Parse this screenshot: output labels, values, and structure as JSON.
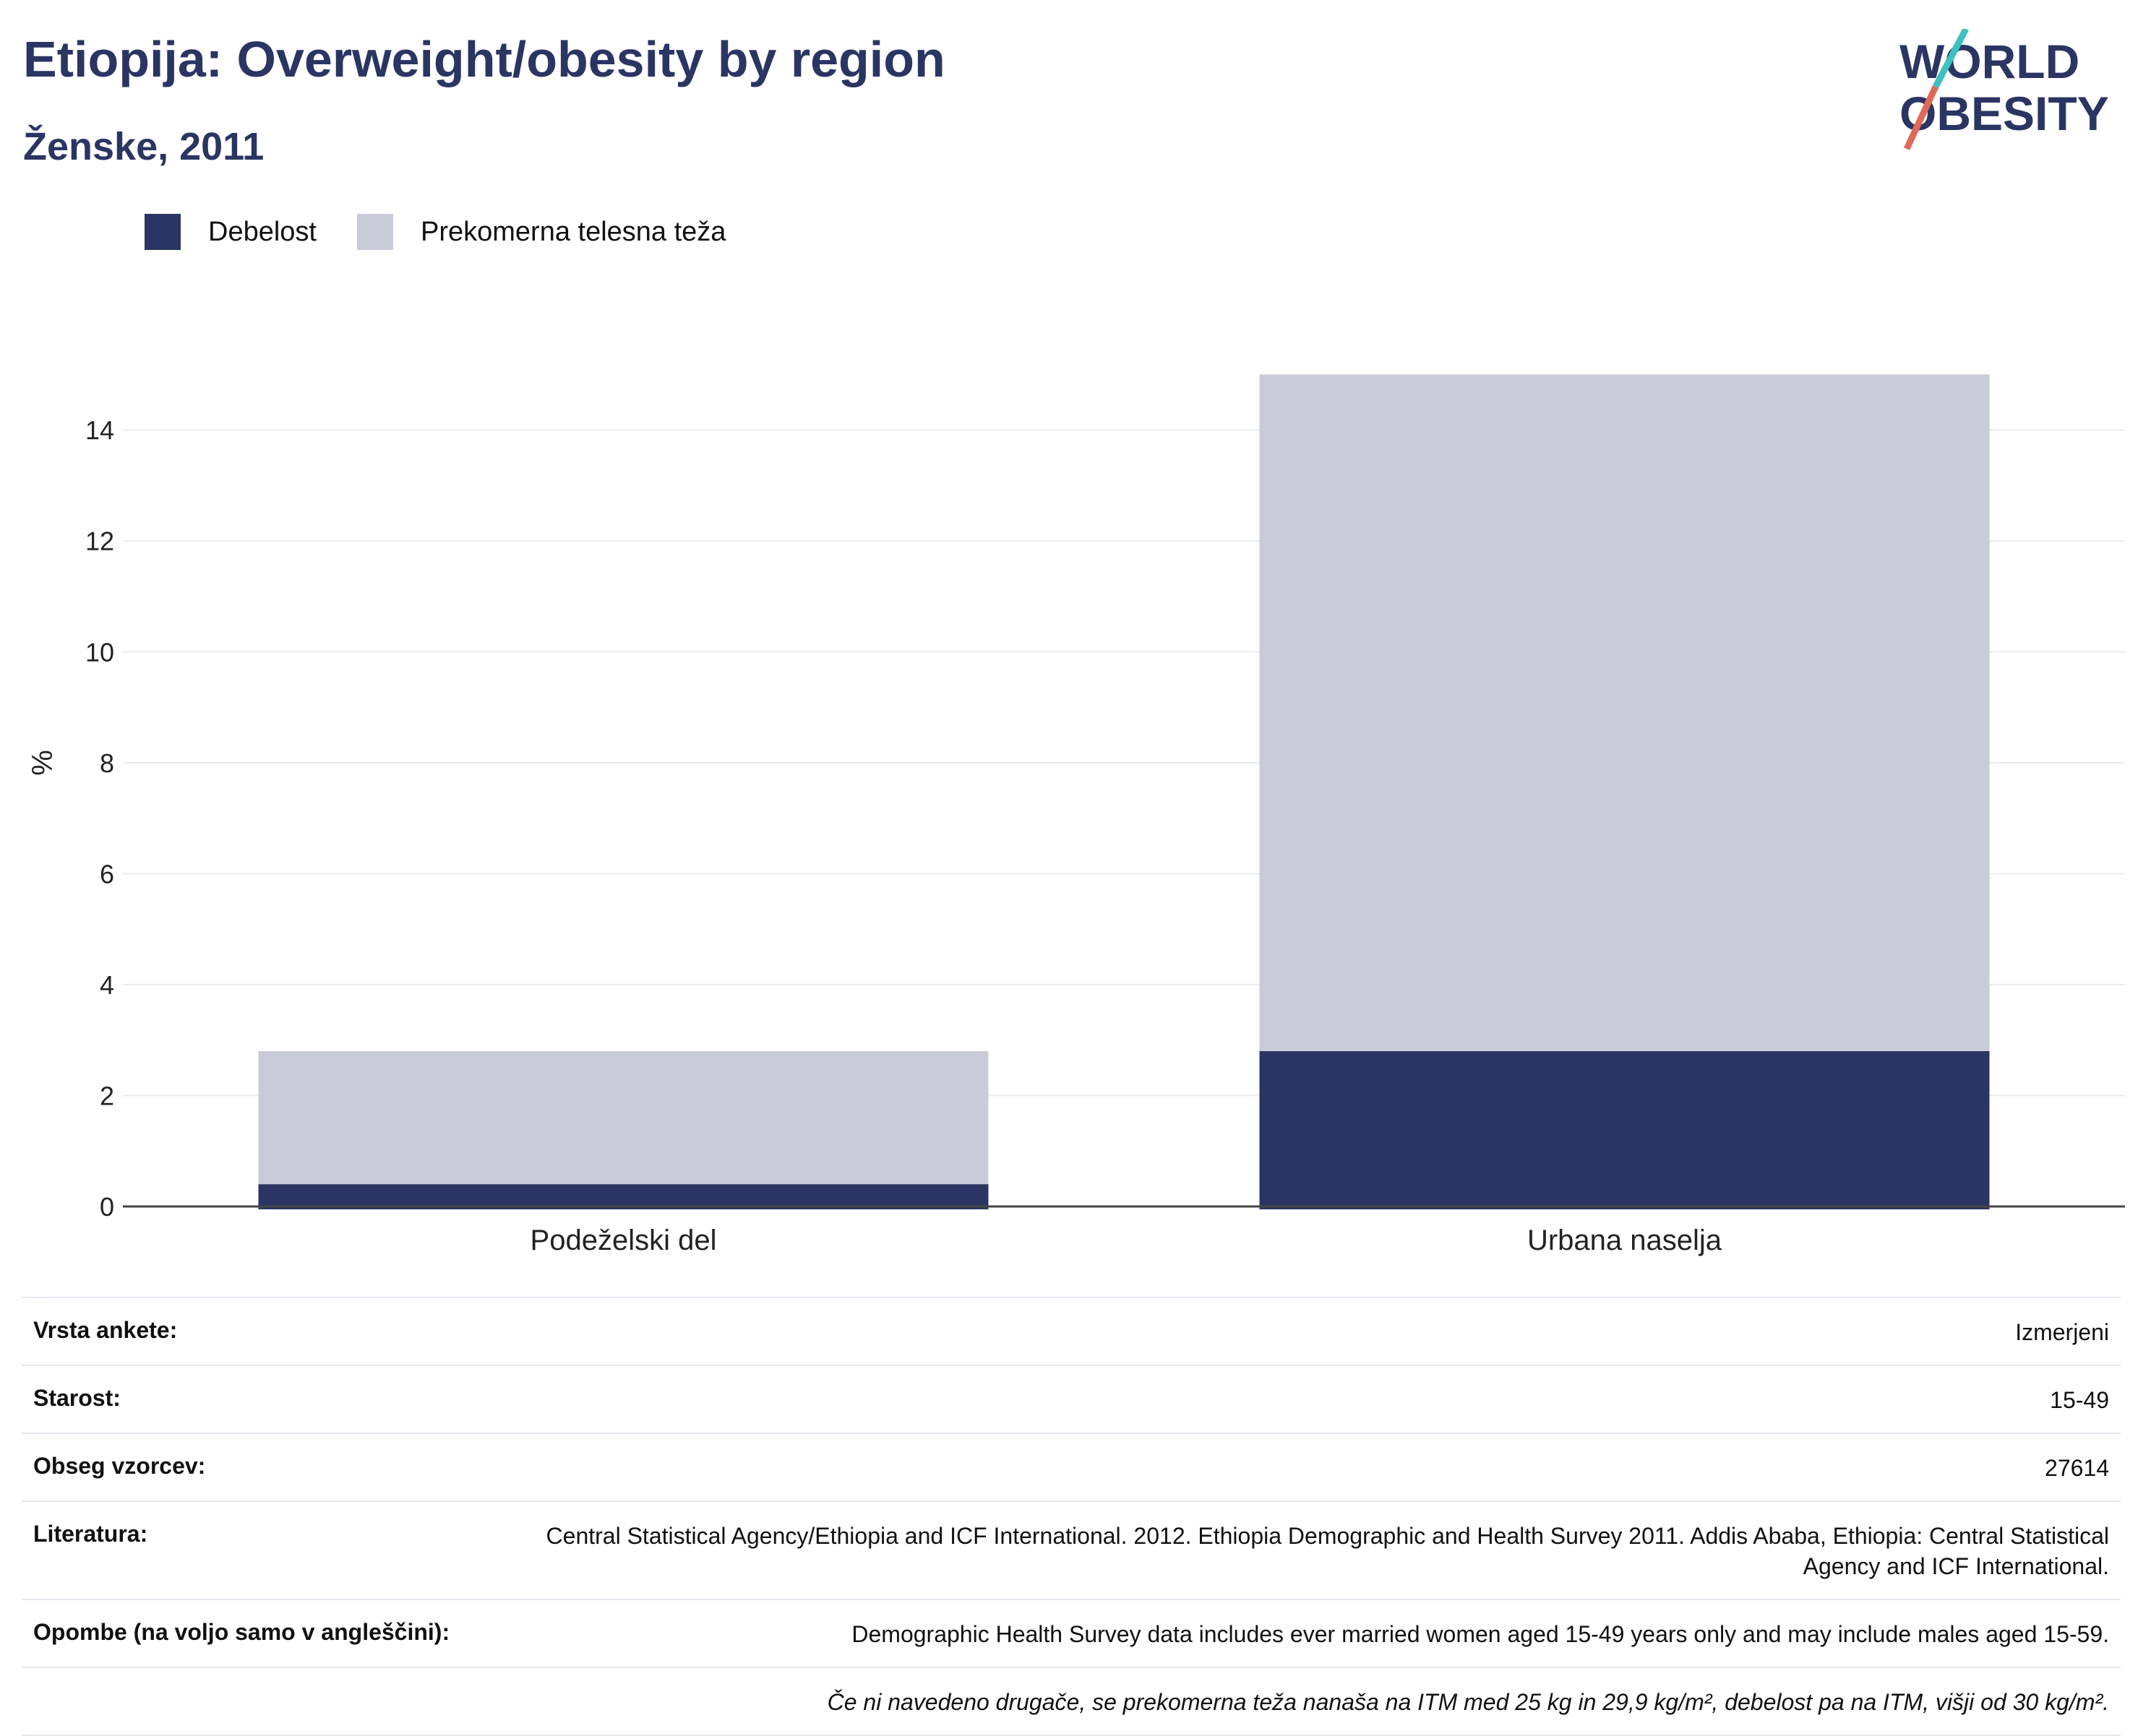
{
  "header": {
    "title": "Etiopija: Overweight/obesity by region",
    "subtitle": "Ženske, 2011"
  },
  "logo": {
    "line1": "WORLD",
    "line2": "OBESITY"
  },
  "colors": {
    "obesity": "#2b3563",
    "overweight": "#c9ccd8",
    "title": "#2b3563",
    "logo_teal": "#3cc0c0",
    "logo_red": "#e06a5a"
  },
  "chart_data": {
    "type": "bar",
    "stacked": false,
    "categories": [
      "Podeželski del",
      "Urbana naselja"
    ],
    "series": [
      {
        "name": "Prekomerna telesna teža",
        "values": [
          2.8,
          15.0
        ]
      },
      {
        "name": "Debelost",
        "values": [
          0.4,
          2.8
        ]
      }
    ],
    "ylabel": "%",
    "ylim": [
      0,
      15.5
    ],
    "yticks": [
      0,
      2,
      4,
      6,
      8,
      10,
      12,
      14
    ],
    "grid": true,
    "legend_position": "top-left"
  },
  "meta": {
    "rows": [
      {
        "key": "Vrsta ankete:",
        "value": "Izmerjeni"
      },
      {
        "key": "Starost:",
        "value": "15-49"
      },
      {
        "key": "Obseg vzorcev:",
        "value": "27614"
      },
      {
        "key": "Literatura:",
        "value": "Central Statistical Agency/Ethiopia and ICF International. 2012. Ethiopia Demographic and Health Survey 2011. Addis Ababa, Ethiopia: Central Statistical Agency and ICF International."
      },
      {
        "key": "Opombe (na voljo samo v angleščini):",
        "value": "Demographic Health Survey data includes ever married women aged 15-49 years only and may include males aged 15-59."
      }
    ],
    "footnote": "Če ni navedeno drugače, se prekomerna teža nanaša na ITM med 25 kg in 29,9 kg/m², debelost pa na ITM, višji od 30 kg/m²."
  }
}
